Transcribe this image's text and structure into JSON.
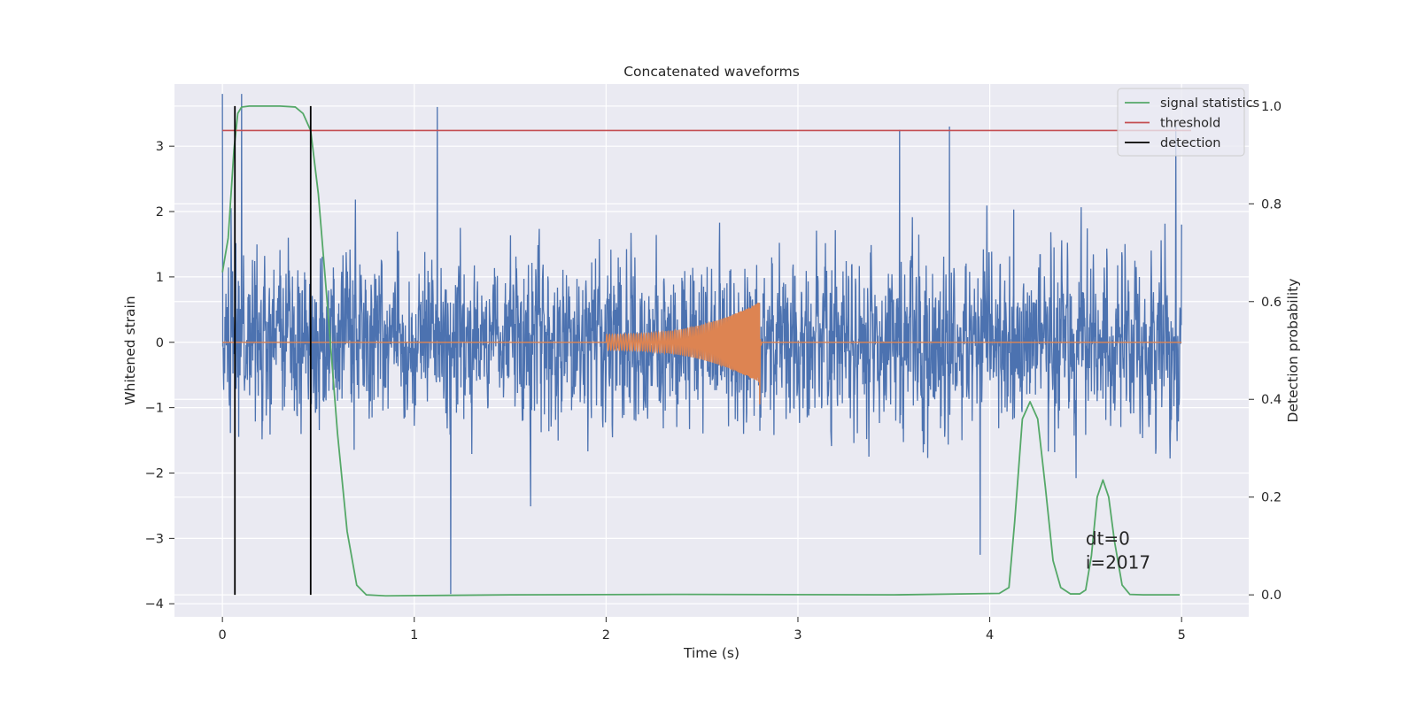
{
  "chart_data": {
    "type": "line",
    "title": "Concatenated waveforms",
    "xlabel": "Time (s)",
    "ylabel": "Whitened strain",
    "y2label": "Detection probability",
    "xlim": [
      -0.25,
      5.35
    ],
    "ylim": [
      -4.2,
      3.95
    ],
    "y2lim": [
      -0.045,
      1.045
    ],
    "x_ticks": [
      0,
      1,
      2,
      3,
      4,
      5
    ],
    "y_ticks": [
      -4,
      -3,
      -2,
      -1,
      0,
      1,
      2,
      3
    ],
    "y2_ticks": [
      0.0,
      0.2,
      0.4,
      0.6,
      0.8,
      1.0
    ],
    "y2_tick_labels": [
      "0.0",
      "0.2",
      "0.4",
      "0.6",
      "0.8",
      "1.0"
    ],
    "grid": true,
    "legend_position": "top-right",
    "colors": {
      "background": "#eaeaf2",
      "strain": "#4c72b0",
      "template": "#dd8452",
      "signal": "#55a868",
      "threshold": "#c44e52",
      "detection": "#000000"
    },
    "series": [
      {
        "kind": "noise",
        "axis": "left",
        "x_range": [
          0,
          5
        ],
        "typical_amplitude": 1.0,
        "envelope": [
          [
            0,
            3.8
          ],
          [
            0.1,
            3.8
          ],
          [
            1.12,
            3.6
          ],
          [
            1.19,
            -3.85
          ],
          [
            3.53,
            3.25
          ],
          [
            3.79,
            3.3
          ],
          [
            3.95,
            -3.25
          ],
          [
            4.97,
            3.3
          ],
          [
            5.0,
            1.8
          ]
        ]
      },
      {
        "kind": "chirp",
        "axis": "left",
        "x_range": [
          2.0,
          2.8
        ],
        "amplitude_start": 0.12,
        "amplitude_peak": 0.62,
        "amplitude_min": -0.95,
        "baseline": 0.0
      },
      {
        "name": "signal statistics",
        "axis": "right",
        "x": [
          0,
          0.03,
          0.06,
          0.08,
          0.1,
          0.14,
          0.2,
          0.3,
          0.38,
          0.42,
          0.46,
          0.5,
          0.55,
          0.6,
          0.65,
          0.7,
          0.75,
          0.85,
          1.5,
          2.4,
          3.5,
          4.05,
          4.1,
          4.13,
          4.17,
          4.21,
          4.25,
          4.29,
          4.33,
          4.37,
          4.42,
          4.47,
          4.5,
          4.53,
          4.56,
          4.59,
          4.62,
          4.65,
          4.69,
          4.73,
          4.8,
          4.99
        ],
        "y": [
          0.66,
          0.73,
          0.91,
          0.985,
          0.998,
          1.0,
          1.0,
          1.0,
          0.998,
          0.985,
          0.95,
          0.82,
          0.58,
          0.33,
          0.13,
          0.02,
          0.0,
          -0.002,
          0.0,
          0.001,
          0.0,
          0.003,
          0.015,
          0.15,
          0.36,
          0.395,
          0.36,
          0.22,
          0.07,
          0.015,
          0.002,
          0.002,
          0.01,
          0.08,
          0.2,
          0.235,
          0.2,
          0.11,
          0.02,
          0.001,
          0.0,
          0.0
        ]
      },
      {
        "name": "threshold",
        "axis": "right",
        "x": [
          0,
          5.05
        ],
        "y": [
          0.95,
          0.95
        ]
      },
      {
        "name": "detection",
        "axis": "right",
        "segments": [
          {
            "x": 0.065,
            "y": [
              0,
              1.0
            ]
          },
          {
            "x": 0.46,
            "y": [
              0,
              1.0
            ]
          }
        ]
      }
    ],
    "legend": [
      "signal statistics",
      "threshold",
      "detection"
    ],
    "annotations": [
      {
        "text": "dt=0",
        "x": 4.5,
        "y": -3.0
      },
      {
        "text": "i=2017",
        "x": 4.5,
        "y": -3.37
      }
    ]
  }
}
